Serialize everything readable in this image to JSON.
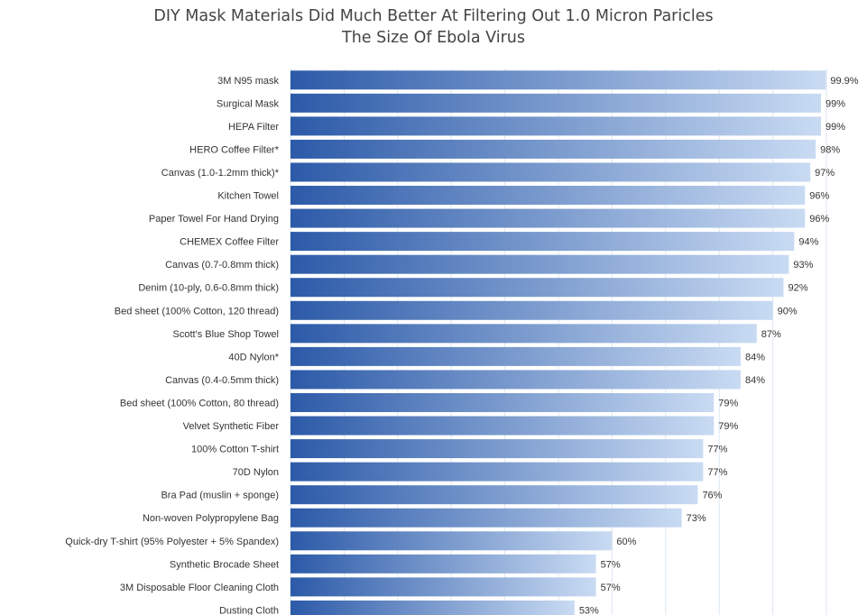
{
  "chart_data": {
    "type": "bar",
    "orientation": "horizontal",
    "title": "DIY Mask Materials Did Much Better At Filtering Out 1.0 Micron Paricles",
    "subtitle": "The Size Of Ebola Virus",
    "categories": [
      "3M N95 mask",
      "Surgical Mask",
      "HEPA Filter",
      "HERO Coffee Filter*",
      "Canvas (1.0-1.2mm thick)*",
      "Kitchen Towel",
      "Paper Towel For Hand Drying",
      "CHEMEX Coffee Filter",
      "Canvas (0.7-0.8mm thick)",
      "Denim (10-ply, 0.6-0.8mm thick)",
      "Bed sheet (100% Cotton, 120 thread)",
      "Scott's Blue Shop Towel",
      "40D Nylon*",
      "Canvas (0.4-0.5mm thick)",
      "Bed sheet (100% Cotton, 80 thread)",
      "Velvet Synthetic Fiber",
      "100% Cotton T-shirt",
      "70D Nylon",
      "Bra Pad (muslin + sponge)",
      "Non-woven Polypropylene Bag",
      "Quick-dry T-shirt (95% Polyester + 5% Spandex)",
      "Synthetic Brocade Sheet",
      "3M Disposable Floor Cleaning Cloth",
      "Dusting Cloth"
    ],
    "values": [
      99.9,
      99,
      99,
      98,
      97,
      96,
      96,
      94,
      93,
      92,
      90,
      87,
      84,
      84,
      79,
      79,
      77,
      77,
      76,
      73,
      60,
      57,
      57,
      53
    ],
    "value_labels": [
      "99.9%",
      "99%",
      "99%",
      "98%",
      "97%",
      "96%",
      "96%",
      "94%",
      "93%",
      "92%",
      "90%",
      "87%",
      "84%",
      "84%",
      "79%",
      "79%",
      "77%",
      "77%",
      "76%",
      "73%",
      "60%",
      "57%",
      "57%",
      "53%"
    ],
    "xlabel": "",
    "ylabel": "",
    "xlim": [
      0,
      100
    ],
    "grid": true,
    "legend": "none",
    "colors": {
      "bar_start": "#2c5aa8",
      "bar_end": "#c9dbf3",
      "grid": "#dde6f2",
      "text": "#333333",
      "title": "#444444"
    }
  }
}
